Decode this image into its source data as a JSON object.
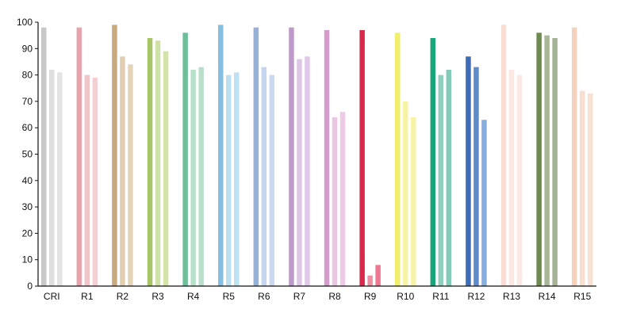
{
  "chart_data": {
    "type": "bar",
    "title": "",
    "xlabel": "",
    "ylabel": "",
    "ylim": [
      0,
      100
    ],
    "yticks": [
      0,
      10,
      20,
      30,
      40,
      50,
      60,
      70,
      80,
      90,
      100
    ],
    "grid": false,
    "legend": "none",
    "categories": [
      "CRI",
      "R1",
      "R2",
      "R3",
      "R4",
      "R5",
      "R6",
      "R7",
      "R8",
      "R9",
      "R10",
      "R11",
      "R12",
      "R13",
      "R14",
      "R15"
    ],
    "series": [
      {
        "values": [
          98,
          98,
          99,
          94,
          96,
          99,
          98,
          98,
          97,
          97,
          96,
          94,
          87,
          99,
          96,
          98
        ]
      },
      {
        "values": [
          82,
          80,
          87,
          93,
          82,
          80,
          83,
          86,
          64,
          4,
          70,
          80,
          83,
          82,
          95,
          74
        ]
      },
      {
        "values": [
          81,
          79,
          84,
          89,
          83,
          81,
          80,
          87,
          66,
          8,
          64,
          82,
          63,
          80,
          94,
          73
        ]
      }
    ],
    "colors": [
      [
        "#c8c8c8",
        "#dedede",
        "#e4e4e4"
      ],
      [
        "#e8a3ac",
        "#f1c4c9",
        "#f4cfd3"
      ],
      [
        "#c9a97e",
        "#e2cfb2",
        "#e6d4b9"
      ],
      [
        "#a7c566",
        "#d0e1a7",
        "#d5e3a8"
      ],
      [
        "#6cbf98",
        "#b7e0ca",
        "#b9dfcb"
      ],
      [
        "#86bee0",
        "#bde0f0",
        "#bfe2f2"
      ],
      [
        "#97b0d6",
        "#c6d6ee",
        "#cad9f0"
      ],
      [
        "#bd9ac9",
        "#ddc6e6",
        "#dfc8e8"
      ],
      [
        "#d49ccb",
        "#eac6e3",
        "#edcbe6"
      ],
      [
        "#d8284b",
        "#ef8fa4",
        "#ee7891"
      ],
      [
        "#f1ee6b",
        "#f6f3a6",
        "#f7f4aa"
      ],
      [
        "#1aa67b",
        "#8fd0bd",
        "#84ccb8"
      ],
      [
        "#3d6bb5",
        "#5f8bc9",
        "#86aedf"
      ],
      [
        "#f9ddd3",
        "#fbe8e2",
        "#fbe9e3"
      ],
      [
        "#6e8a52",
        "#a8b797",
        "#a5b396"
      ],
      [
        "#f4d2bd",
        "#f7dfd0",
        "#f7e1d3"
      ]
    ]
  }
}
